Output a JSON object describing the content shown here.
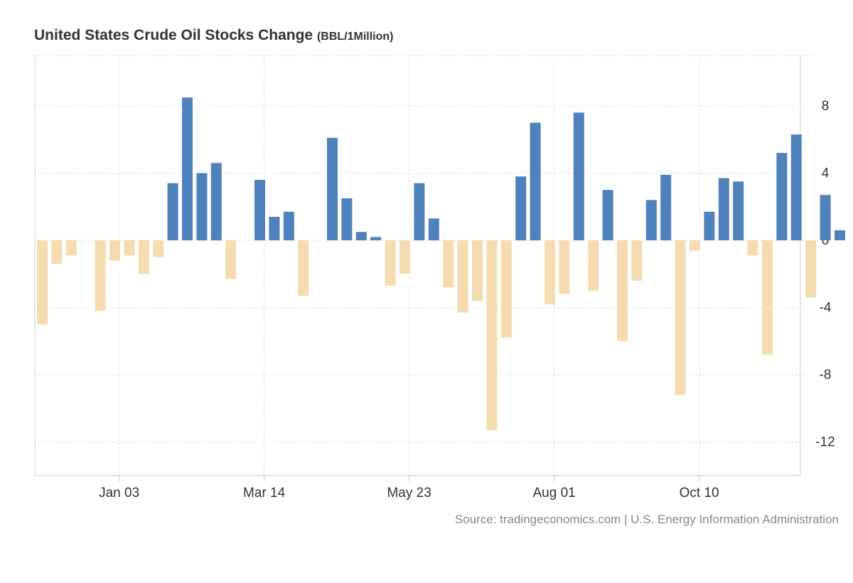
{
  "header": {
    "title": "United States Crude Oil Stocks Change",
    "unit": "(BBL/1Million)"
  },
  "source": "Source: tradingeconomics.com | U.S. Energy Information Administration",
  "colors": {
    "positive": "#4f81bd",
    "negative": "#f5dcb0",
    "grid": "#d6d6d6",
    "axis": "#cccccc",
    "text": "#333333"
  },
  "chart_data": {
    "type": "bar",
    "title": "United States Crude Oil Stocks Change",
    "ylabel": "BBL/1Million",
    "xlabel": "",
    "ylim": [
      -14,
      11
    ],
    "yticks": [
      8,
      4,
      0,
      -4,
      -8,
      -12
    ],
    "ytick_labels": [
      "8",
      "4",
      "0",
      "-4",
      "-8",
      "-12"
    ],
    "x_tick_labels": [
      {
        "label": "Jan 03",
        "index": 5.3
      },
      {
        "label": "Mar 14",
        "index": 15.3
      },
      {
        "label": "May 23",
        "index": 25.3
      },
      {
        "label": "Aug 01",
        "index": 35.3
      },
      {
        "label": "Oct 10",
        "index": 45.3
      }
    ],
    "values": [
      -5.0,
      -1.4,
      -0.9,
      0,
      -4.2,
      -1.2,
      -0.9,
      -2.0,
      -1.0,
      3.4,
      8.5,
      4.0,
      4.6,
      -2.3,
      0,
      3.6,
      1.4,
      1.7,
      -3.3,
      0,
      6.1,
      2.5,
      0.5,
      0.2,
      -2.7,
      -2.0,
      3.4,
      1.3,
      -2.8,
      -4.3,
      -3.6,
      -11.3,
      -5.8,
      3.8,
      7.0,
      -3.8,
      -3.2,
      7.6,
      -3.0,
      3.0,
      -6.0,
      -2.4,
      2.4,
      3.9,
      -9.2,
      -0.6,
      1.7,
      3.7,
      3.5,
      -0.9,
      -6.8,
      5.2,
      6.3,
      -3.4,
      2.7,
      0.6
    ],
    "grid": true,
    "legend": "none"
  }
}
